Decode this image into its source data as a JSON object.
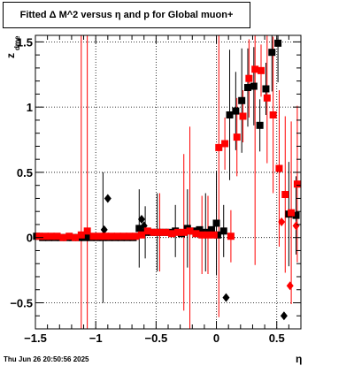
{
  "title": "Fitted Δ M^2 versus η and p for Global muon+",
  "timestamp": "Thu Jun 26 20:50:56 2025",
  "chart_data": {
    "type": "scatter",
    "xlabel": "η",
    "ylabel": "z",
    "ylabel_sub": "dme",
    "xlim": [
      -1.5,
      0.7
    ],
    "ylim": [
      -0.7,
      1.55
    ],
    "xticks": [
      {
        "v": -1.5,
        "label": "−1.5"
      },
      {
        "v": -1,
        "label": "−1"
      },
      {
        "v": -0.5,
        "label": "−0.5"
      },
      {
        "v": 0,
        "label": "0"
      },
      {
        "v": 0.5,
        "label": "0.5"
      }
    ],
    "yticks": [
      {
        "v": -0.5,
        "label": "−0.5"
      },
      {
        "v": 0,
        "label": "0"
      },
      {
        "v": 0.5,
        "label": "0.5"
      },
      {
        "v": 1,
        "label": "1"
      },
      {
        "v": 1.5,
        "label": "1.5"
      }
    ],
    "grid": true,
    "colors": {
      "black_series": "#000000",
      "red_series": "#ff0000"
    },
    "series": [
      {
        "color": "#000000",
        "marker": "square",
        "points": [
          [
            -1.49,
            0.01,
            0
          ],
          [
            -1.44,
            0.0,
            0
          ],
          [
            -1.39,
            0.0,
            0
          ],
          [
            -1.34,
            0.0,
            0
          ],
          [
            -1.29,
            0.0,
            0
          ],
          [
            -1.24,
            0.0,
            0
          ],
          [
            -1.19,
            0.0,
            0
          ],
          [
            -1.14,
            0.0,
            0
          ],
          [
            -1.09,
            0.0,
            0
          ],
          [
            -1.04,
            0.0,
            0
          ],
          [
            -0.99,
            0.0,
            0
          ],
          [
            -0.94,
            0.0,
            0.5
          ],
          [
            -0.89,
            0.0,
            0
          ],
          [
            -0.84,
            0.0,
            0
          ],
          [
            -0.79,
            0.0,
            0
          ],
          [
            -0.74,
            0.0,
            0
          ],
          [
            -0.69,
            0.0,
            0
          ],
          [
            -0.64,
            0.07,
            0.3
          ],
          [
            -0.59,
            0.04,
            0.2
          ],
          [
            -0.54,
            0.04,
            0
          ],
          [
            -0.49,
            0.04,
            0.3
          ],
          [
            -0.44,
            0.04,
            0
          ],
          [
            -0.39,
            0.04,
            0
          ],
          [
            -0.34,
            0.05,
            0.2
          ],
          [
            -0.29,
            0.03,
            0
          ],
          [
            -0.24,
            0.07,
            0.3
          ],
          [
            -0.19,
            0.05,
            0
          ],
          [
            -0.14,
            0.06,
            0
          ],
          [
            -0.09,
            0.04,
            0.3
          ],
          [
            -0.04,
            0.06,
            0
          ],
          [
            0.0,
            0.11,
            0.4
          ],
          [
            0.01,
            0.02,
            0
          ],
          [
            0.06,
            0.05,
            0.2
          ],
          [
            0.11,
            0.94,
            0.5
          ],
          [
            0.16,
            0.97,
            0.3
          ],
          [
            0.21,
            1.05,
            0.4
          ],
          [
            0.26,
            1.15,
            0.3
          ],
          [
            0.31,
            1.16,
            0.3
          ],
          [
            0.36,
            0.86,
            0.2
          ],
          [
            0.41,
            1.14,
            0.2
          ],
          [
            0.46,
            1.42,
            0.3
          ],
          [
            0.51,
            1.49,
            0.3
          ],
          [
            0.6,
            0.18,
            0.4
          ],
          [
            0.66,
            0.17,
            0.3
          ]
        ]
      },
      {
        "color": "#000000",
        "marker": "diamond",
        "points": [
          [
            -0.9,
            0.3,
            0
          ],
          [
            -0.93,
            0.06,
            0
          ],
          [
            -0.62,
            0.14,
            0
          ],
          [
            -0.6,
            0.09,
            0
          ],
          [
            0.08,
            -0.46,
            0
          ],
          [
            0.56,
            -0.6,
            0
          ]
        ]
      },
      {
        "color": "#ff0000",
        "marker": "square",
        "points": [
          [
            -1.47,
            0.01,
            0
          ],
          [
            -1.42,
            0.01,
            0
          ],
          [
            -1.37,
            0.01,
            0
          ],
          [
            -1.32,
            0.01,
            0
          ],
          [
            -1.27,
            0.0,
            0
          ],
          [
            -1.22,
            0.01,
            0
          ],
          [
            -1.17,
            0.0,
            0
          ],
          [
            -1.12,
            0.02,
            1.8
          ],
          [
            -1.07,
            0.05,
            1.8
          ],
          [
            -1.02,
            0.01,
            0
          ],
          [
            -0.97,
            0.01,
            0
          ],
          [
            -0.92,
            0.01,
            0
          ],
          [
            -0.87,
            0.01,
            0
          ],
          [
            -0.82,
            0.01,
            0
          ],
          [
            -0.77,
            0.01,
            0
          ],
          [
            -0.72,
            0.01,
            0
          ],
          [
            -0.67,
            0.01,
            0
          ],
          [
            -0.62,
            0.02,
            0
          ],
          [
            -0.57,
            0.05,
            0
          ],
          [
            -0.52,
            0.04,
            0
          ],
          [
            -0.47,
            0.04,
            0.3
          ],
          [
            -0.42,
            0.04,
            0
          ],
          [
            -0.37,
            0.03,
            0
          ],
          [
            -0.32,
            0.04,
            0
          ],
          [
            -0.27,
            0.04,
            0.6
          ],
          [
            -0.22,
            0.05,
            0.8
          ],
          [
            -0.17,
            0.03,
            0
          ],
          [
            -0.12,
            0.02,
            0.3
          ],
          [
            -0.07,
            0.02,
            0.3
          ],
          [
            -0.02,
            0.02,
            0
          ],
          [
            0.02,
            0.69,
            1.3
          ],
          [
            0.07,
            0.72,
            0.2
          ],
          [
            0.12,
            0.01,
            0.2
          ],
          [
            0.17,
            0.77,
            0.3
          ],
          [
            0.22,
            0.93,
            0.2
          ],
          [
            0.27,
            1.22,
            0.3
          ],
          [
            0.32,
            1.29,
            1.5
          ],
          [
            0.37,
            1.28,
            0.2
          ],
          [
            0.42,
            1.07,
            0.5
          ],
          [
            0.47,
            0.94,
            0.6
          ],
          [
            0.52,
            0.53,
            0.6
          ],
          [
            0.57,
            0.33,
            0.6
          ],
          [
            0.62,
            0.19,
            0.7
          ],
          [
            0.67,
            0.41,
            0.6
          ]
        ]
      },
      {
        "color": "#ff0000",
        "marker": "diamond",
        "points": [
          [
            0.54,
            0.12,
            0
          ],
          [
            0.61,
            -0.37,
            0
          ],
          [
            0.66,
            0.09,
            0
          ]
        ]
      }
    ]
  }
}
